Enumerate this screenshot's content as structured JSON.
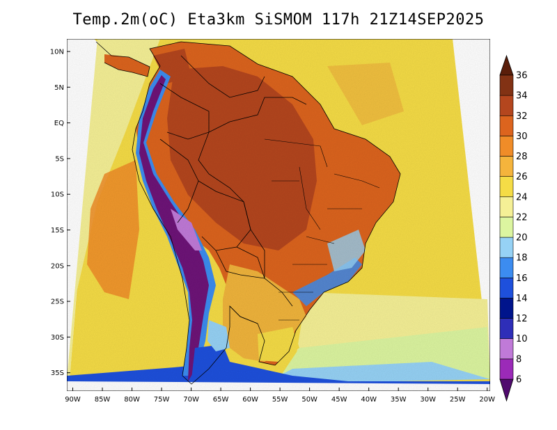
{
  "title": "Temp.2m(oC) Eta3km SiSMOM 117h 21Z14SEP2025",
  "map": {
    "lat_labels": [
      "10N",
      "5N",
      "EQ",
      "5S",
      "10S",
      "15S",
      "20S",
      "25S",
      "30S",
      "35S"
    ],
    "lat_values": [
      10,
      5,
      0,
      -5,
      -10,
      -15,
      -20,
      -25,
      -30,
      -35
    ],
    "lon_labels": [
      "90W",
      "85W",
      "80W",
      "75W",
      "70W",
      "65W",
      "60W",
      "55W",
      "50W",
      "45W",
      "40W",
      "35W",
      "30W",
      "25W",
      "20W"
    ],
    "lon_values": [
      -90,
      -85,
      -80,
      -75,
      -70,
      -65,
      -60,
      -55,
      -50,
      -45,
      -40,
      -35,
      -30,
      -25,
      -20
    ]
  },
  "colorbar": {
    "labels": [
      "6",
      "8",
      "10",
      "12",
      "14",
      "16",
      "18",
      "20",
      "22",
      "24",
      "26",
      "28",
      "30",
      "32",
      "34",
      "36"
    ],
    "levels": [
      6,
      8,
      10,
      12,
      14,
      16,
      18,
      20,
      22,
      24,
      26,
      28,
      30,
      32,
      34,
      36
    ],
    "colors": [
      "#6e1478",
      "#9b2ab8",
      "#c07ad8",
      "#2e2eb8",
      "#00148c",
      "#1e50dc",
      "#3c8cf0",
      "#96d2f5",
      "#dcf5a0",
      "#f5f096",
      "#f5dc46",
      "#f5b43c",
      "#f08c28",
      "#dc641e",
      "#b4461e",
      "#823214",
      "#5a1e0a"
    ],
    "arrow_low_color": "#500a6e",
    "arrow_high_color": "#5a1e0a"
  },
  "palette": {
    "ocean_warm": "#f5dc46",
    "ocean_mild": "#f5f096",
    "ocean_hot": "#f0a028",
    "land_hot": "#dc641e",
    "land_very_hot": "#b4461e",
    "andes_cool": "#3c8cf0",
    "andes_cold": "#6e1478",
    "south_cool": "#1e50dc"
  }
}
